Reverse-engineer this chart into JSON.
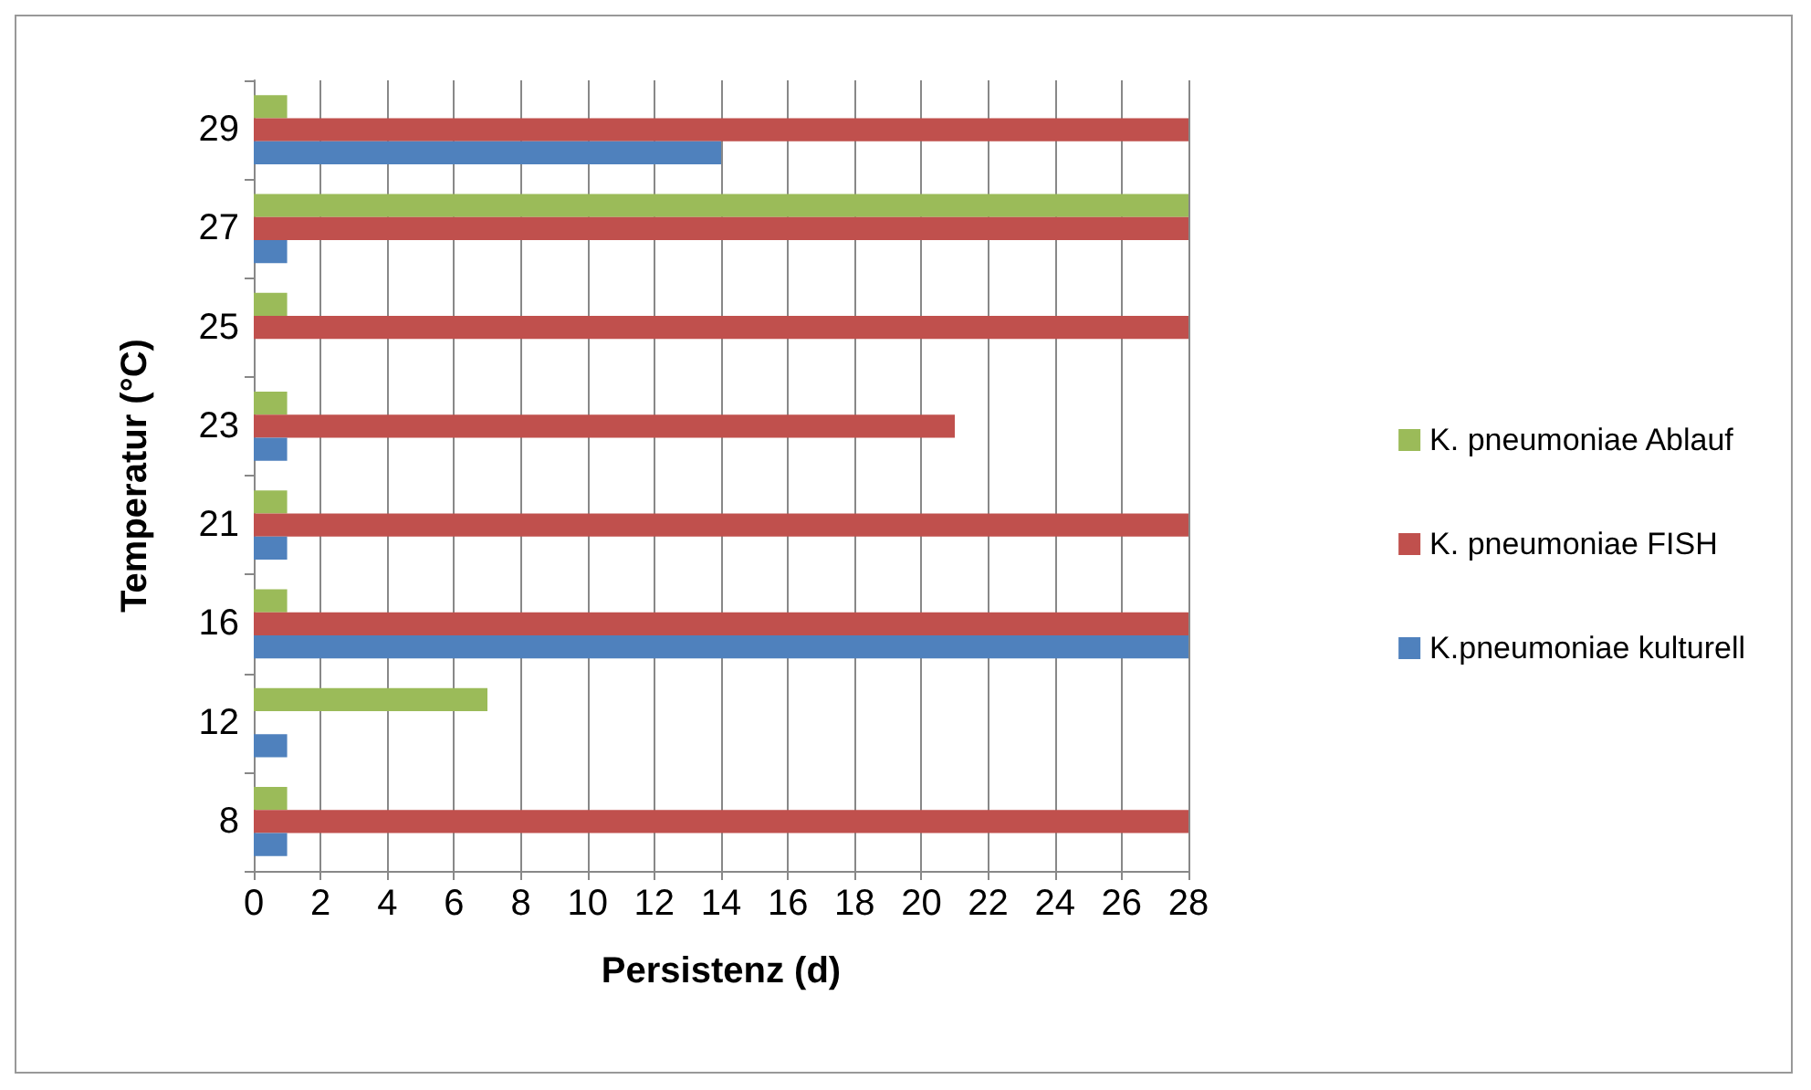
{
  "chart_data": {
    "type": "bar",
    "orientation": "horizontal",
    "categories": [
      "29",
      "27",
      "25",
      "23",
      "21",
      "16",
      "12",
      "8"
    ],
    "series": [
      {
        "name": "K. pneumoniae Ablauf",
        "color": "#9bbb59",
        "values": [
          1,
          28,
          1,
          1,
          1,
          1,
          7,
          1
        ]
      },
      {
        "name": "K. pneumoniae FISH",
        "color": "#c0504d",
        "values": [
          28,
          28,
          28,
          21,
          28,
          28,
          0,
          28
        ]
      },
      {
        "name": "K.pneumoniae kulturell",
        "color": "#4f81bd",
        "values": [
          14,
          1,
          0,
          1,
          1,
          28,
          1,
          1
        ]
      }
    ],
    "xlabel": "Persistenz (d)",
    "ylabel": "Temperatur (°C)",
    "xlim": [
      0,
      28
    ],
    "xticks": [
      0,
      2,
      4,
      6,
      8,
      10,
      12,
      14,
      16,
      18,
      20,
      22,
      24,
      26,
      28
    ],
    "grid": "x",
    "legend": "right"
  }
}
